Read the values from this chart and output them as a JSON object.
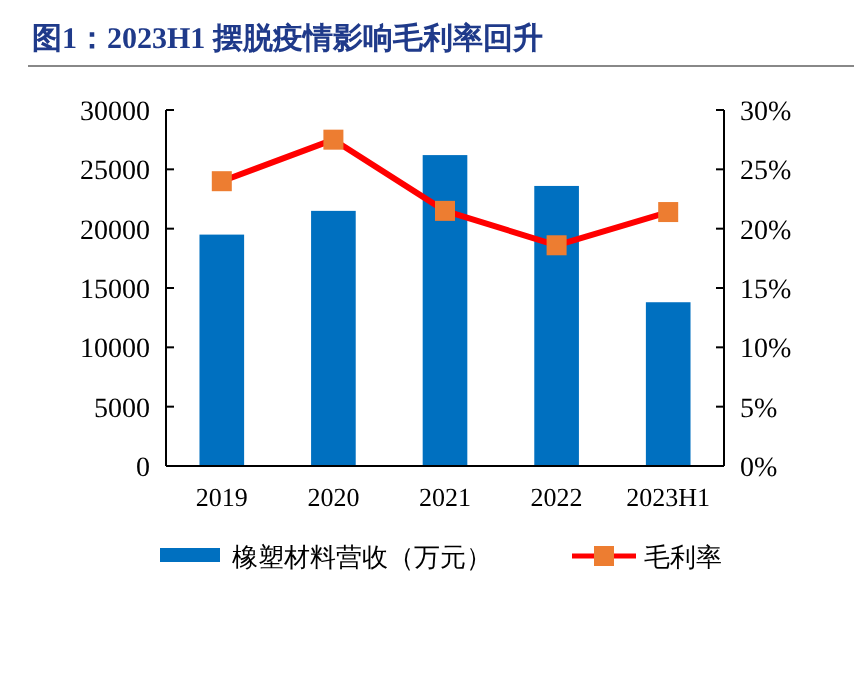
{
  "chart_data": {
    "type": "bar",
    "title": "图1：2023H1 摆脱疫情影响毛利率回升",
    "categories": [
      "2019",
      "2020",
      "2021",
      "2022",
      "2023H1"
    ],
    "series": [
      {
        "name": "橡塑材料营收（万元）",
        "color": "#0070c0",
        "values": [
          19500,
          21500,
          26200,
          23600,
          13800
        ]
      },
      {
        "name": "毛利率",
        "type": "line",
        "axis": "y2",
        "color": "#ff0000",
        "marker": "square",
        "values": [
          24.0,
          27.5,
          21.5,
          18.6,
          21.4
        ]
      }
    ],
    "ylim": [
      0,
      30000
    ],
    "yticks": [
      0,
      5000,
      10000,
      15000,
      20000,
      25000,
      30000
    ],
    "y2lim": [
      0,
      30
    ],
    "y2ticks": [
      {
        "value": 0,
        "label": "0%"
      },
      {
        "value": 5,
        "label": "5%"
      },
      {
        "value": 10,
        "label": "10%"
      },
      {
        "value": 15,
        "label": "15%"
      },
      {
        "value": 20,
        "label": "20%"
      },
      {
        "value": 25,
        "label": "25%"
      },
      {
        "value": 30,
        "label": "30%"
      }
    ],
    "grid": false,
    "legend": "bottom"
  }
}
